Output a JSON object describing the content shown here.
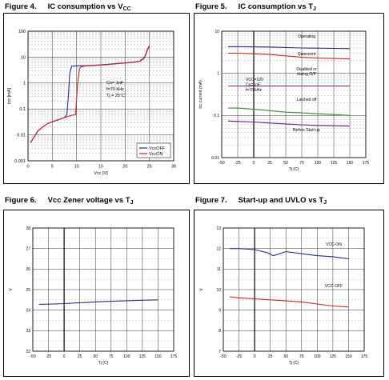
{
  "figures": [
    {
      "number": "Figure 4.",
      "title": "IC consumption vs V",
      "title_sub": "CC",
      "chart_data": {
        "type": "line",
        "xlabel": "Vcc [V]",
        "ylabel": "Icc [mA]",
        "yscale": "log",
        "xlim": [
          0,
          30
        ],
        "ylim": [
          0.001,
          100
        ],
        "xticks": [
          "0",
          "5",
          "10",
          "15",
          "20",
          "25",
          "30"
        ],
        "yticks": [
          "0.001",
          "0.01",
          "0.1",
          "1",
          "10",
          "100"
        ],
        "annotations": [
          "Co= 1nF",
          "f=70 kHz",
          "Tj = 25°C"
        ],
        "legend": "bottom-right",
        "series": [
          {
            "name": "VccOFF",
            "color": "#1f2f8f",
            "x": [
              0.5,
              1,
              2,
              3,
              4,
              5,
              6,
              7,
              7.5,
              8,
              8.3,
              8.6,
              9,
              10,
              12,
              14,
              16,
              18,
              20,
              22,
              23,
              23.5,
              24,
              24.3,
              24.6,
              25
            ],
            "y": [
              0.005,
              0.007,
              0.014,
              0.02,
              0.027,
              0.032,
              0.037,
              0.043,
              0.047,
              0.06,
              0.3,
              2.5,
              4.5,
              4.6,
              4.7,
              4.9,
              5.2,
              5.6,
              6,
              6.5,
              7,
              8,
              10,
              14,
              20,
              28
            ]
          },
          {
            "name": "VccON",
            "color": "#cc1f2a",
            "x": [
              0.5,
              1,
              2,
              3,
              4,
              5,
              6,
              7,
              8,
              9,
              9.8,
              10.2,
              10.6,
              11,
              12,
              14,
              16,
              18,
              20,
              22,
              23,
              23.5,
              24,
              24.3,
              24.6,
              25
            ],
            "y": [
              0.005,
              0.007,
              0.014,
              0.02,
              0.027,
              0.032,
              0.037,
              0.043,
              0.05,
              0.057,
              0.06,
              0.9,
              3.6,
              4.3,
              4.6,
              4.8,
              5.1,
              5.5,
              5.9,
              6.4,
              6.9,
              7.8,
              9.5,
              13,
              19,
              27
            ]
          }
        ]
      }
    },
    {
      "number": "Figure 5.",
      "title": "IC consumption vs T",
      "title_sub": "J",
      "chart_data": {
        "type": "line",
        "xlabel": "Tj (C)",
        "ylabel": "Icc current (mA)",
        "yscale": "log",
        "xlim": [
          -50,
          175
        ],
        "ylim": [
          0.01,
          10
        ],
        "xticks": [
          "-50",
          "-25",
          "0",
          "25",
          "50",
          "75",
          "100",
          "125",
          "150",
          "175"
        ],
        "yticks": [
          "0.01",
          "0.1",
          "1",
          "10"
        ],
        "annotations": [
          "VCC=12V",
          "Co=1nF",
          "f=70 kHz"
        ],
        "series": [
          {
            "name": "Operating",
            "color": "#1f2f8f",
            "x": [
              -40,
              -25,
              0,
              25,
              50,
              75,
              100,
              125,
              150
            ],
            "y": [
              4.3,
              4.3,
              4.25,
              4.2,
              4.1,
              4.0,
              3.95,
              3.9,
              3.85
            ]
          },
          {
            "name": "Quiescent",
            "color": "#cc1f2a",
            "x": [
              -40,
              -25,
              0,
              25,
              50,
              75,
              100,
              125,
              150
            ],
            "y": [
              3.0,
              3.0,
              2.9,
              2.8,
              2.6,
              2.4,
              2.3,
              2.25,
              2.2
            ]
          },
          {
            "name": "Disabled or during O/P",
            "color": "#8a1a8a",
            "x": [
              -40,
              -25,
              0,
              25,
              50,
              75,
              100,
              125,
              150
            ],
            "y": [
              0.5,
              0.5,
              0.5,
              0.5,
              0.5,
              0.5,
              0.5,
              0.5,
              0.5
            ]
          },
          {
            "name": "Latched off",
            "color": "#2e8b2e",
            "x": [
              -40,
              -25,
              0,
              25,
              50,
              75,
              100,
              125,
              150
            ],
            "y": [
              0.15,
              0.15,
              0.14,
              0.13,
              0.12,
              0.115,
              0.11,
              0.105,
              0.1
            ]
          },
          {
            "name": "Before Start up",
            "color": "#6a1f8a",
            "x": [
              -40,
              -25,
              0,
              25,
              50,
              75,
              100,
              125,
              150
            ],
            "y": [
              0.074,
              0.072,
              0.07,
              0.066,
              0.063,
              0.06,
              0.058,
              0.057,
              0.056
            ]
          }
        ]
      }
    },
    {
      "number": "Figure 6.",
      "title": "Vcc Zener voltage vs T",
      "title_sub": "J",
      "chart_data": {
        "type": "line",
        "xlabel": "Tj (C)",
        "ylabel": "V",
        "xlim": [
          -50,
          175
        ],
        "ylim": [
          22,
          28
        ],
        "xticks": [
          "-50",
          "-25",
          "0",
          "25",
          "50",
          "75",
          "100",
          "125",
          "150",
          "175"
        ],
        "yticks": [
          "22",
          "23",
          "24",
          "25",
          "26",
          "27",
          "28"
        ],
        "series": [
          {
            "name": "",
            "color": "#1f2f8f",
            "x": [
              -40,
              -25,
              0,
              25,
              50,
              75,
              100,
              125,
              150
            ],
            "y": [
              24.28,
              24.29,
              24.32,
              24.36,
              24.4,
              24.43,
              24.46,
              24.48,
              24.5
            ]
          }
        ]
      }
    },
    {
      "number": "Figure 7.",
      "title": "Start-up and UVLO vs T",
      "title_sub": "J",
      "chart_data": {
        "type": "line",
        "xlabel": "Tj (C)",
        "ylabel": "V",
        "xlim": [
          -50,
          175
        ],
        "ylim": [
          7,
          13
        ],
        "xticks": [
          "-50",
          "-25",
          "0",
          "25",
          "50",
          "75",
          "100",
          "125",
          "150",
          "175"
        ],
        "yticks": [
          "7",
          "8",
          "9",
          "10",
          "11",
          "12",
          "13"
        ],
        "series": [
          {
            "name": "VCC-ON",
            "color": "#1f2f8f",
            "x": [
              -40,
              -25,
              0,
              20,
              30,
              50,
              75,
              100,
              125,
              150
            ],
            "y": [
              12.0,
              12.0,
              11.95,
              11.8,
              11.65,
              11.85,
              11.75,
              11.65,
              11.6,
              11.5
            ]
          },
          {
            "name": "VCC-OFF",
            "color": "#cc1f2a",
            "x": [
              -40,
              -25,
              0,
              25,
              50,
              75,
              100,
              125,
              150
            ],
            "y": [
              9.65,
              9.6,
              9.55,
              9.5,
              9.45,
              9.4,
              9.3,
              9.2,
              9.15
            ]
          }
        ]
      }
    }
  ]
}
